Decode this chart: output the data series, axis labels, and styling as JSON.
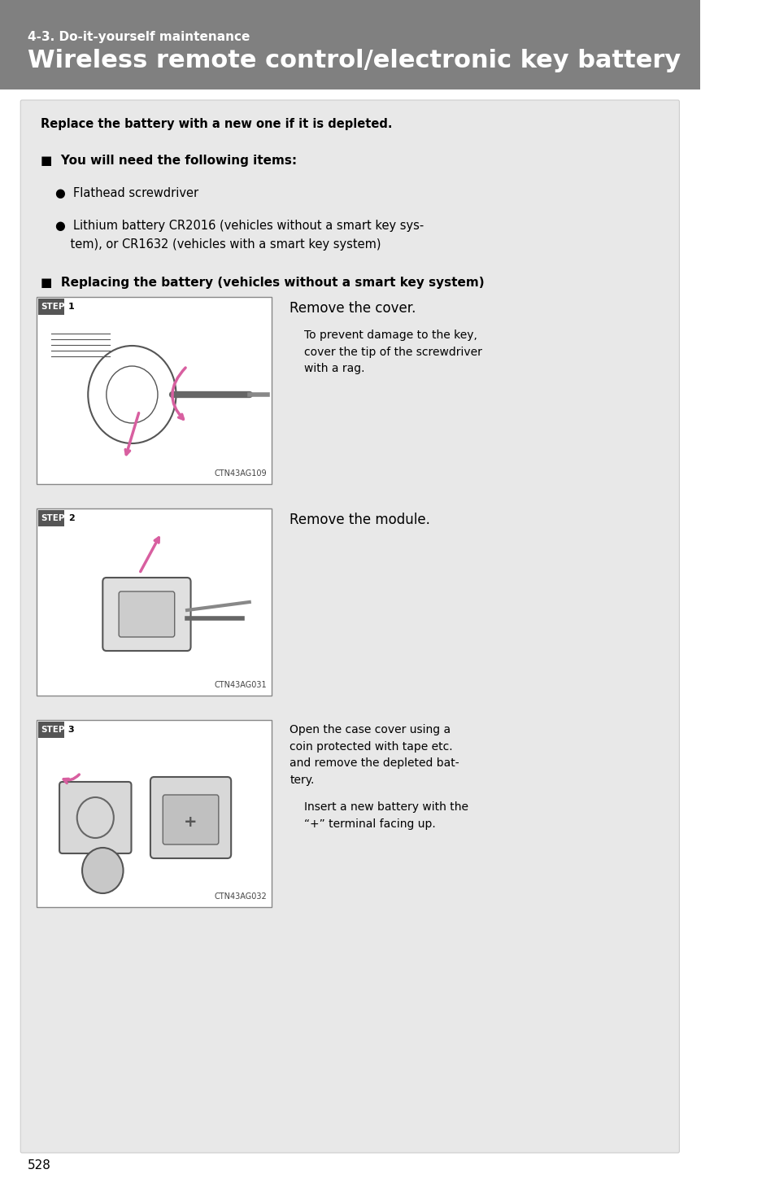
{
  "page_bg": "#ffffff",
  "header_bg": "#808080",
  "header_subtitle": "4-3. Do-it-yourself maintenance",
  "header_title": "Wireless remote control/electronic key battery",
  "header_text_color": "#ffffff",
  "content_bg": "#e8e8e8",
  "page_number": "528",
  "bold_intro": "Replace the battery with a new one if it is depleted.",
  "section1_title": "■  You will need the following items:",
  "bullet1": "●  Flathead screwdriver",
  "bullet2_line1": "●  Lithium battery CR2016 (vehicles without a smart key sys-",
  "bullet2_line2": "    tem), or CR1632 (vehicles with a smart key system)",
  "section2_title": "■  Replacing the battery (vehicles without a smart key system)",
  "step1_label": "STEP",
  "step1_num": "1",
  "step1_caption": "CTN43AG109",
  "step1_text1": "Remove the cover.",
  "step1_text2": "To prevent damage to the key,\ncover the tip of the screwdriver\nwith a rag.",
  "step2_label": "STEP",
  "step2_num": "2",
  "step2_caption": "CTN43AG031",
  "step2_text1": "Remove the module.",
  "step3_label": "STEP",
  "step3_num": "3",
  "step3_caption": "CTN43AG032",
  "step3_text1": "Open the case cover using a\ncoin protected with tape etc.\nand remove the depleted bat-\ntery.",
  "step3_text2": "Insert a new battery with the\n“+” terminal facing up.",
  "step_bg": "#555555",
  "step_text_color": "#ffffff",
  "step_num_bg": "#ffffff",
  "step_num_color": "#000000",
  "image_border_color": "#999999",
  "body_text_color": "#000000"
}
